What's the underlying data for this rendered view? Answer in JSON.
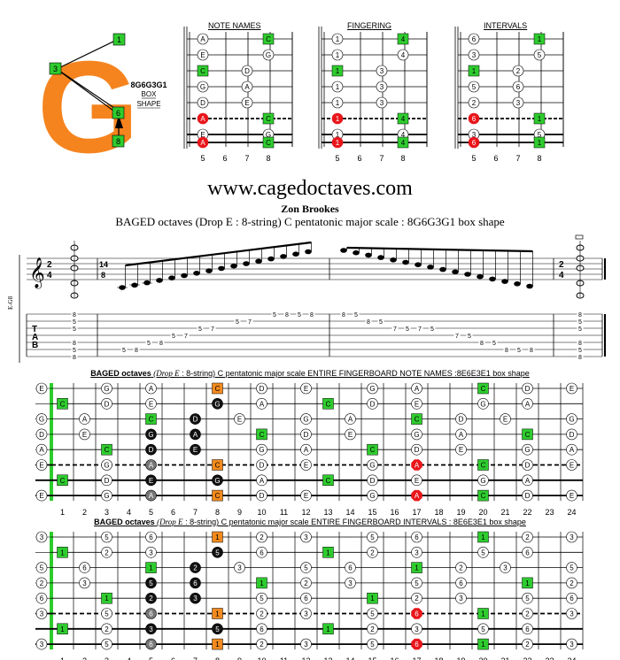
{
  "logo": {
    "letter": "G",
    "shape_code": "8G6G3G1",
    "shape_word1": "BOX",
    "shape_word2": "SHAPE",
    "markers": [
      "1",
      "3",
      "6",
      "8"
    ]
  },
  "diagram_headers": {
    "note_names": "NOTE NAMES",
    "fingering": "FINGERING",
    "intervals": "INTERVALS"
  },
  "small_fret_numbers": [
    "5",
    "6",
    "7",
    "8"
  ],
  "website": "www.cagedoctaves.com",
  "author": "Zon Brookes",
  "subtitle": "BAGED octaves (Drop E : 8-string) C pentatonic major scale : 8G6G3G1 box shape",
  "notation": {
    "tuning_label": "E-G8",
    "time_sig_first": [
      "2",
      "4"
    ],
    "time_sig_run": [
      "14",
      "8"
    ],
    "time_sig_last": [
      "2",
      "4"
    ],
    "tab_letters": [
      "T",
      "A",
      "B"
    ]
  },
  "board1_title": {
    "bold": "BAGED octaves",
    "italic": "(Drop E",
    "rest": ": 8-string) C pentatonic major scale ENTIRE FINGERBOARD NOTE NAMES :8E6E3E1 box shape"
  },
  "board2_title": {
    "bold": "BAGED octaves",
    "italic": "(Drop E",
    "rest": ": 8-string) C pentatonic major scale ENTIRE FINGERBOARD INTERVALS : 8E6E3E1 box shape"
  },
  "fret_numbers": [
    "1",
    "2",
    "3",
    "4",
    "5",
    "6",
    "7",
    "8",
    "9",
    "10",
    "11",
    "12",
    "13",
    "14",
    "15",
    "16",
    "17",
    "18",
    "19",
    "20",
    "21",
    "22",
    "23",
    "24"
  ],
  "colors": {
    "root_green": "#2ecc2e",
    "red": "#e8161b",
    "orange": "#f28a1e",
    "black": "#111111",
    "gray": "#777777",
    "logo_orange": "#f5841f"
  }
}
